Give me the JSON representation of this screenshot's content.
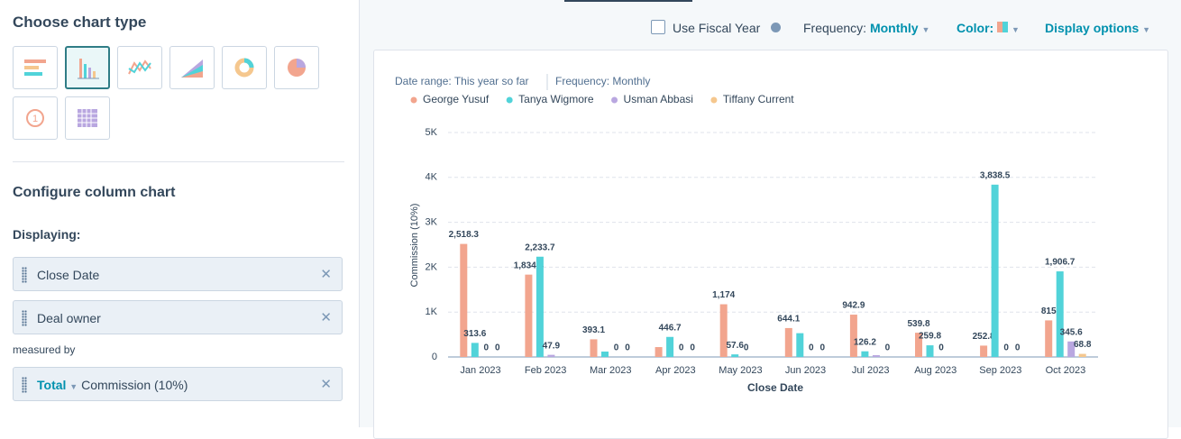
{
  "sidebar": {
    "heading": "Choose chart type",
    "configure_heading": "Configure column chart",
    "displaying_label": "Displaying:",
    "dimensions": [
      "Close Date",
      "Deal owner"
    ],
    "measured_by_label": "measured by",
    "measure_aggregate": "Total",
    "measure_name": "Commission (10%)"
  },
  "toolbar": {
    "fiscal_year": "Use Fiscal Year",
    "frequency_label": "Frequency:",
    "frequency_value": "Monthly",
    "color_label": "Color:",
    "display_options": "Display options"
  },
  "report": {
    "date_range": "Date range: This year so far",
    "frequency": "Frequency: Monthly"
  },
  "chart_data": {
    "type": "bar",
    "x_label": "Close Date",
    "y_label": "Commission (10%)",
    "categories": [
      "Jan 2023",
      "Feb 2023",
      "Mar 2023",
      "Apr 2023",
      "May 2023",
      "Jun 2023",
      "Jul 2023",
      "Aug 2023",
      "Sep 2023",
      "Oct 2023"
    ],
    "series": [
      {
        "name": "George Yusuf",
        "color": "#f2a58e",
        "values": [
          2518.3,
          1834.4,
          393.1,
          220,
          1174,
          644.1,
          942.9,
          539.8,
          252.8,
          815
        ],
        "value_labels": [
          "2,518.3",
          "1,834.4",
          "393.1",
          null,
          "1,174",
          "644.1",
          "942.9",
          "539.8",
          "252.8",
          "815"
        ]
      },
      {
        "name": "Tanya Wigmore",
        "color": "#51d3d9",
        "values": [
          313.6,
          2233.7,
          120,
          446.7,
          57.6,
          530,
          126.2,
          259.8,
          3838.5,
          1906.7
        ],
        "value_labels": [
          "313.6",
          "2,233.7",
          null,
          "446.7",
          "57.6",
          null,
          "126.2",
          "259.8",
          "3,838.5",
          "1,906.7"
        ]
      },
      {
        "name": "Usman Abbasi",
        "color": "#b9a7e0",
        "values": [
          0,
          47.9,
          0,
          0,
          0,
          0,
          40,
          0,
          0,
          345.6
        ],
        "value_labels": [
          "0",
          "47.9",
          "0",
          "0",
          "0",
          "0",
          null,
          "0",
          "0",
          "345.6"
        ]
      },
      {
        "name": "Tiffany Current",
        "color": "#f5c78e",
        "values": [
          0,
          null,
          0,
          0,
          null,
          0,
          0,
          null,
          0,
          68.8
        ],
        "value_labels": [
          "0",
          null,
          "0",
          "0",
          null,
          "0",
          "0",
          null,
          "0",
          "68.8"
        ]
      }
    ],
    "ylim": [
      0,
      5000
    ],
    "yticks": [
      0,
      {
        "value": 1000,
        "label": "1K"
      },
      {
        "value": 2000,
        "label": "2K"
      },
      {
        "value": 3000,
        "label": "3K"
      },
      {
        "value": 4000,
        "label": "4K"
      },
      {
        "value": 5000,
        "label": "5K"
      }
    ],
    "grid": true
  }
}
